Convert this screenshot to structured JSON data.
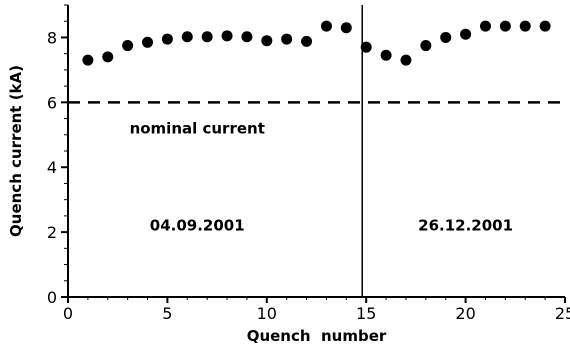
{
  "chart_data": {
    "type": "scatter",
    "xlabel": "Quench  number",
    "ylabel": "Quench current (kA)",
    "xlim": [
      0,
      25
    ],
    "ylim": [
      0,
      9
    ],
    "xticks": [
      0,
      5,
      10,
      15,
      20,
      25
    ],
    "yticks": [
      0,
      2,
      4,
      6,
      8
    ],
    "x_minor_step": 1,
    "y_minor_step": 0.5,
    "grid": false,
    "series": [
      {
        "marker": "circle",
        "color": "#000000",
        "x": [
          1,
          2,
          3,
          4,
          5,
          6,
          7,
          8,
          9,
          10,
          11,
          12,
          13,
          14,
          15,
          16,
          17,
          18,
          19,
          20,
          21,
          22,
          23,
          24
        ],
        "y": [
          7.3,
          7.4,
          7.75,
          7.85,
          7.95,
          8.02,
          8.02,
          8.05,
          8.02,
          7.9,
          7.95,
          7.88,
          8.35,
          8.3,
          7.7,
          7.45,
          7.3,
          7.75,
          8.0,
          8.1,
          8.35,
          8.35,
          8.35,
          8.35
        ]
      }
    ],
    "reference_line": {
      "y": 6,
      "style": "dashed",
      "label": "nominal current",
      "label_at": [
        6.5,
        5.2
      ]
    },
    "divider": {
      "x": 14.8
    },
    "annotations": [
      {
        "text": "04.09.2001",
        "at": [
          6.5,
          2.2
        ]
      },
      {
        "text": "26.12.2001",
        "at": [
          20,
          2.2
        ]
      }
    ]
  }
}
